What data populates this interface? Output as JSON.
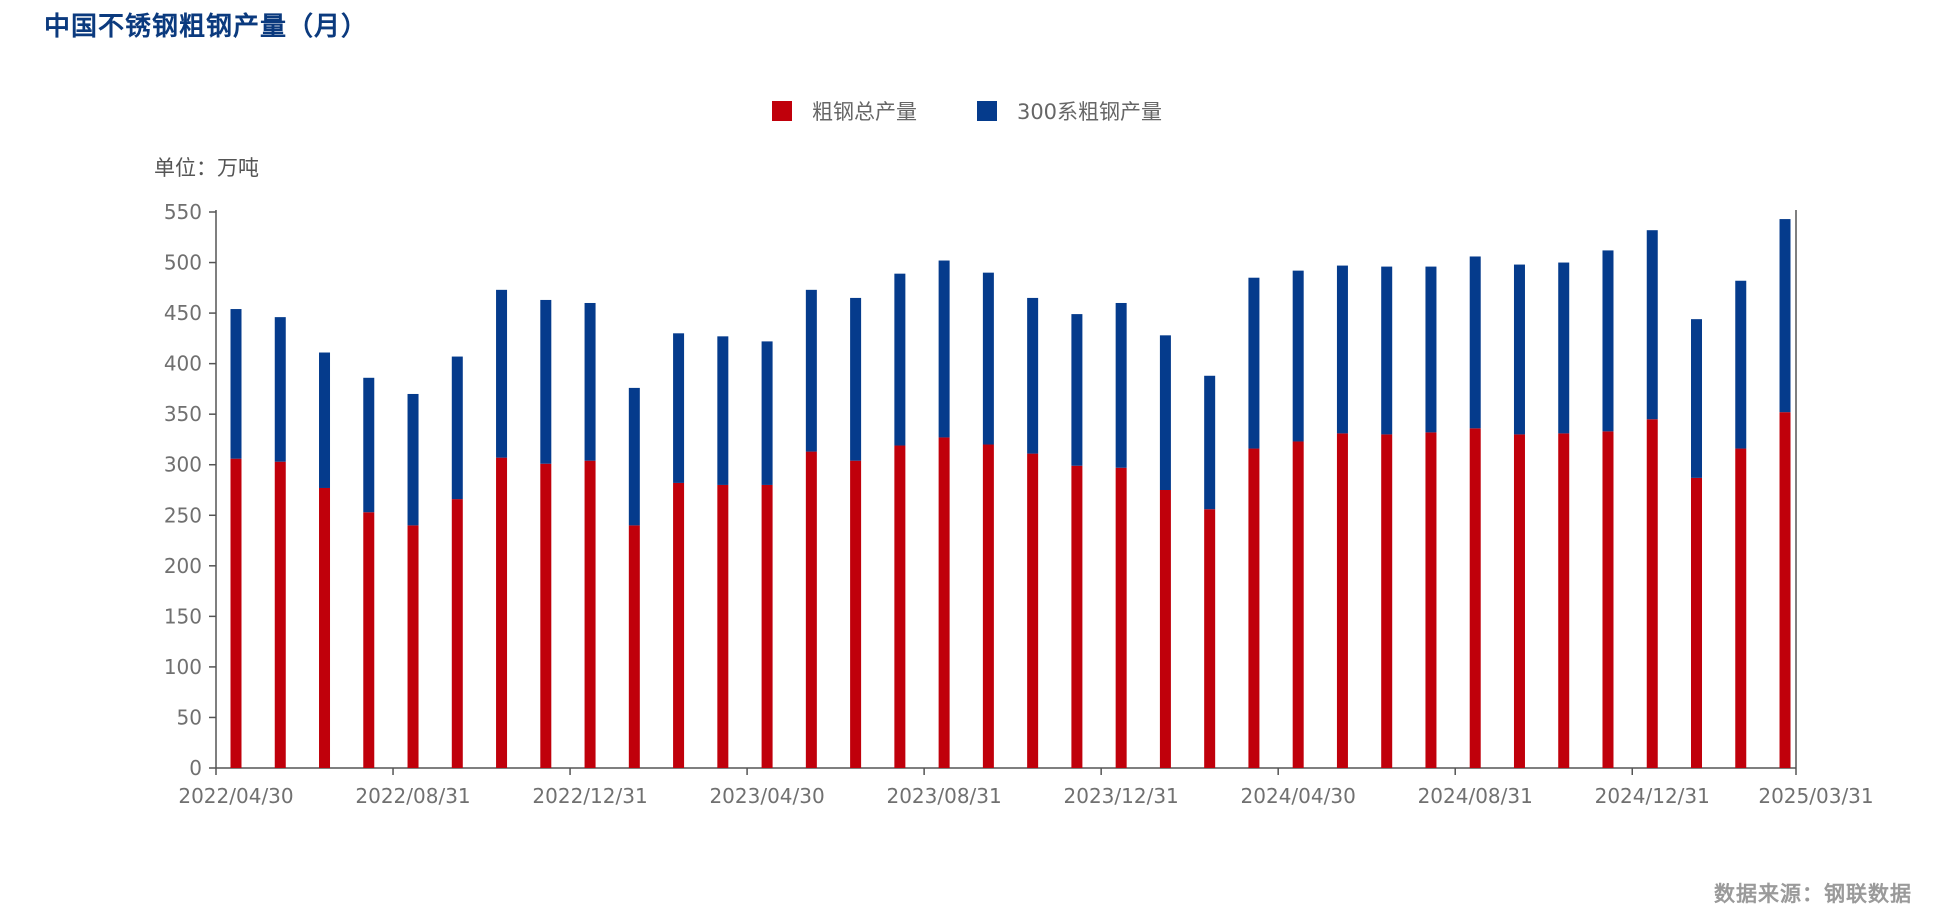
{
  "title": "中国不锈钢粗钢产量（月）",
  "unit_label": "单位：万吨",
  "source": "数据来源：钢联数据",
  "legend": [
    {
      "label": "粗钢总产量",
      "color": "#c0000b"
    },
    {
      "label": "300系粗钢产量",
      "color": "#053b8c"
    }
  ],
  "chart_data": {
    "type": "bar",
    "stacked": true,
    "categories": [
      "2022/04/30",
      "2022/05/31",
      "2022/06/30",
      "2022/07/31",
      "2022/08/31",
      "2022/09/30",
      "2022/10/31",
      "2022/11/30",
      "2022/12/31",
      "2023/01/31",
      "2023/02/28",
      "2023/03/31",
      "2023/04/30",
      "2023/05/31",
      "2023/06/30",
      "2023/07/31",
      "2023/08/31",
      "2023/09/30",
      "2023/10/31",
      "2023/11/30",
      "2023/12/31",
      "2024/01/31",
      "2024/02/29",
      "2024/03/31",
      "2024/04/30",
      "2024/05/31",
      "2024/06/30",
      "2024/07/31",
      "2024/08/31",
      "2024/09/30",
      "2024/10/31",
      "2024/11/30",
      "2024/12/31",
      "2025/01/31",
      "2025/02/28",
      "2025/03/31"
    ],
    "x_tick_labels": [
      "2022/04/30",
      "2022/08/31",
      "2022/12/31",
      "2023/04/30",
      "2023/08/31",
      "2023/12/31",
      "2024/04/30",
      "2024/08/31",
      "2024/12/31",
      "2025/03/31"
    ],
    "series": [
      {
        "name": "粗钢总产量",
        "color": "#c0000b",
        "values": [
          306,
          303,
          277,
          253,
          240,
          266,
          307,
          301,
          304,
          240,
          282,
          280,
          280,
          313,
          304,
          319,
          327,
          320,
          311,
          299,
          297,
          275,
          256,
          316,
          323,
          331,
          330,
          332,
          336,
          330,
          331,
          333,
          345,
          287,
          316,
          352
        ]
      },
      {
        "name": "300系粗钢产量",
        "color": "#053b8c",
        "values": [
          148,
          143,
          134,
          133,
          130,
          141,
          166,
          162,
          156,
          136,
          148,
          147,
          142,
          160,
          161,
          170,
          175,
          170,
          154,
          150,
          163,
          153,
          132,
          169,
          169,
          166,
          166,
          164,
          170,
          168,
          169,
          179,
          187,
          157,
          166,
          191
        ]
      }
    ],
    "ylim": [
      0,
      550
    ],
    "yticks": [
      0,
      50,
      100,
      150,
      200,
      250,
      300,
      350,
      400,
      450,
      500,
      550
    ]
  }
}
